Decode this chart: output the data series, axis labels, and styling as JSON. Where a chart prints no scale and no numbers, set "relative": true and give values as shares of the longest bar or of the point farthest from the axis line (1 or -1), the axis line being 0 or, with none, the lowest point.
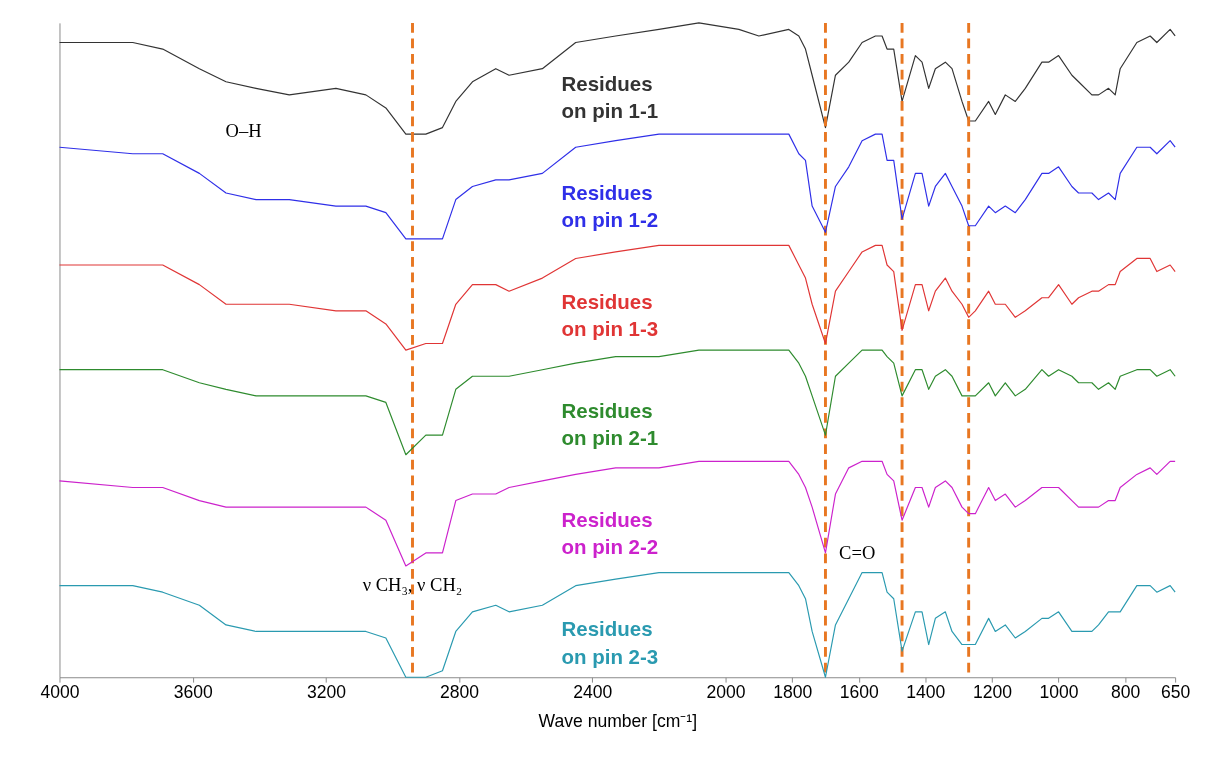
{
  "chart_data": {
    "type": "line",
    "relative": true,
    "xlabel": "Wave number [cm⁻¹]",
    "xlim": [
      4000,
      650
    ],
    "xticks": [
      4000,
      3600,
      3200,
      2800,
      2400,
      2000,
      1800,
      1600,
      1400,
      1200,
      1000,
      800,
      650
    ],
    "grid": false,
    "line_style": "solid",
    "x": [
      4000,
      3780,
      3690,
      3580,
      3500,
      3410,
      3310,
      3170,
      3080,
      3020,
      2960,
      2900,
      2850,
      2810,
      2760,
      2690,
      2650,
      2550,
      2450,
      2330,
      2200,
      2080,
      1960,
      1900,
      1810,
      1780,
      1760,
      1740,
      1700,
      1670,
      1630,
      1590,
      1550,
      1530,
      1515,
      1495,
      1470,
      1430,
      1410,
      1390,
      1370,
      1340,
      1320,
      1290,
      1270,
      1250,
      1210,
      1190,
      1160,
      1130,
      1100,
      1050,
      1030,
      1000,
      960,
      940,
      900,
      880,
      850,
      830,
      815,
      765,
      725,
      705,
      665,
      650
    ],
    "series": [
      {
        "name": "Residues on pin 1-1",
        "color": "#333333",
        "values": [
          0.97,
          0.97,
          0.96,
          0.93,
          0.91,
          0.9,
          0.89,
          0.9,
          0.89,
          0.87,
          0.83,
          0.83,
          0.84,
          0.88,
          0.91,
          0.93,
          0.92,
          0.93,
          0.97,
          0.98,
          0.99,
          1.0,
          0.99,
          0.98,
          0.99,
          0.98,
          0.96,
          0.92,
          0.84,
          0.92,
          0.94,
          0.97,
          0.98,
          0.98,
          0.96,
          0.96,
          0.88,
          0.95,
          0.94,
          0.9,
          0.93,
          0.94,
          0.93,
          0.88,
          0.85,
          0.85,
          0.88,
          0.86,
          0.89,
          0.88,
          0.9,
          0.94,
          0.94,
          0.95,
          0.92,
          0.91,
          0.89,
          0.89,
          0.9,
          0.89,
          0.93,
          0.97,
          0.98,
          0.97,
          0.99,
          0.98
        ]
      },
      {
        "name": "Residues on pin 1-2",
        "color": "#2f2fe8",
        "values": [
          0.81,
          0.8,
          0.8,
          0.77,
          0.74,
          0.73,
          0.73,
          0.72,
          0.72,
          0.71,
          0.67,
          0.67,
          0.67,
          0.73,
          0.75,
          0.76,
          0.76,
          0.77,
          0.81,
          0.82,
          0.83,
          0.83,
          0.83,
          0.83,
          0.83,
          0.8,
          0.79,
          0.72,
          0.68,
          0.75,
          0.78,
          0.82,
          0.83,
          0.83,
          0.79,
          0.79,
          0.7,
          0.77,
          0.77,
          0.72,
          0.75,
          0.77,
          0.75,
          0.72,
          0.69,
          0.69,
          0.72,
          0.71,
          0.72,
          0.71,
          0.73,
          0.77,
          0.77,
          0.78,
          0.75,
          0.74,
          0.74,
          0.73,
          0.74,
          0.73,
          0.77,
          0.81,
          0.81,
          0.8,
          0.82,
          0.81
        ]
      },
      {
        "name": "Residues on pin 1-3",
        "color": "#e03535",
        "values": [
          0.63,
          0.63,
          0.63,
          0.6,
          0.57,
          0.57,
          0.57,
          0.56,
          0.56,
          0.54,
          0.5,
          0.51,
          0.51,
          0.57,
          0.6,
          0.6,
          0.59,
          0.61,
          0.64,
          0.65,
          0.66,
          0.66,
          0.66,
          0.66,
          0.66,
          0.63,
          0.61,
          0.57,
          0.51,
          0.59,
          0.62,
          0.65,
          0.66,
          0.66,
          0.63,
          0.62,
          0.53,
          0.6,
          0.6,
          0.56,
          0.59,
          0.61,
          0.59,
          0.57,
          0.55,
          0.56,
          0.59,
          0.57,
          0.57,
          0.55,
          0.56,
          0.58,
          0.58,
          0.6,
          0.57,
          0.58,
          0.59,
          0.59,
          0.6,
          0.6,
          0.62,
          0.64,
          0.64,
          0.62,
          0.63,
          0.62
        ]
      },
      {
        "name": "Residues on pin 2-1",
        "color": "#2e8b2e",
        "values": [
          0.47,
          0.47,
          0.47,
          0.45,
          0.44,
          0.43,
          0.43,
          0.43,
          0.43,
          0.42,
          0.34,
          0.37,
          0.37,
          0.44,
          0.46,
          0.46,
          0.46,
          0.47,
          0.48,
          0.49,
          0.49,
          0.5,
          0.5,
          0.5,
          0.5,
          0.48,
          0.46,
          0.43,
          0.37,
          0.46,
          0.48,
          0.5,
          0.5,
          0.5,
          0.49,
          0.48,
          0.43,
          0.47,
          0.47,
          0.44,
          0.46,
          0.47,
          0.46,
          0.43,
          0.43,
          0.43,
          0.45,
          0.43,
          0.45,
          0.43,
          0.44,
          0.47,
          0.46,
          0.47,
          0.46,
          0.45,
          0.45,
          0.44,
          0.45,
          0.44,
          0.46,
          0.47,
          0.47,
          0.46,
          0.47,
          0.46
        ]
      },
      {
        "name": "Residues on pin 2-2",
        "color": "#cc22cc",
        "values": [
          0.3,
          0.29,
          0.29,
          0.27,
          0.26,
          0.26,
          0.26,
          0.26,
          0.26,
          0.24,
          0.17,
          0.19,
          0.19,
          0.27,
          0.28,
          0.28,
          0.29,
          0.3,
          0.31,
          0.32,
          0.32,
          0.33,
          0.33,
          0.33,
          0.33,
          0.31,
          0.29,
          0.26,
          0.19,
          0.28,
          0.32,
          0.33,
          0.33,
          0.33,
          0.31,
          0.3,
          0.24,
          0.29,
          0.29,
          0.26,
          0.29,
          0.3,
          0.29,
          0.26,
          0.25,
          0.25,
          0.29,
          0.27,
          0.28,
          0.26,
          0.27,
          0.29,
          0.29,
          0.29,
          0.27,
          0.26,
          0.26,
          0.26,
          0.27,
          0.27,
          0.29,
          0.31,
          0.32,
          0.31,
          0.33,
          0.33
        ]
      },
      {
        "name": "Residues on pin 2-3",
        "color": "#2a9ab0",
        "values": [
          0.14,
          0.14,
          0.13,
          0.11,
          0.08,
          0.07,
          0.07,
          0.07,
          0.07,
          0.06,
          0.0,
          0.0,
          0.01,
          0.07,
          0.1,
          0.11,
          0.1,
          0.11,
          0.14,
          0.15,
          0.16,
          0.16,
          0.16,
          0.16,
          0.16,
          0.14,
          0.12,
          0.07,
          0.0,
          0.08,
          0.12,
          0.16,
          0.16,
          0.16,
          0.13,
          0.12,
          0.04,
          0.1,
          0.1,
          0.05,
          0.09,
          0.1,
          0.07,
          0.05,
          0.05,
          0.05,
          0.09,
          0.07,
          0.08,
          0.06,
          0.07,
          0.09,
          0.09,
          0.1,
          0.07,
          0.07,
          0.07,
          0.08,
          0.1,
          0.1,
          0.1,
          0.14,
          0.14,
          0.13,
          0.14,
          0.13
        ]
      }
    ],
    "ref_lines": [
      {
        "axis": "x",
        "value": 2940,
        "color": "#e87722",
        "line_style": "dashed"
      },
      {
        "axis": "x",
        "value": 1700,
        "color": "#e87722",
        "line_style": "dashed"
      },
      {
        "axis": "x",
        "value": 1470,
        "color": "#e87722",
        "line_style": "dashed"
      },
      {
        "axis": "x",
        "value": 1270,
        "color": "#e87722",
        "line_style": "dashed"
      }
    ],
    "annotations": [
      "O–H",
      {
        "text": "ν CH₃, ν CH₂",
        "x": 2940,
        "y": 0.14
      },
      "C=O"
    ]
  }
}
